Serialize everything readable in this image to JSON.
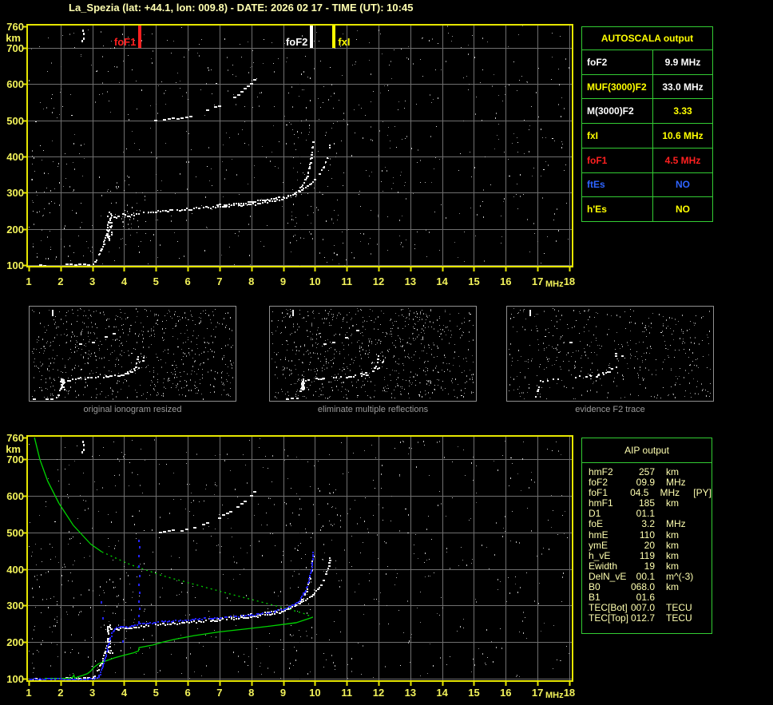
{
  "header": {
    "title": "La_Spezia (lat: +44.1, lon: 009.8) - DATE: 2026 02 17 - TIME (UT): 10:45"
  },
  "colors": {
    "background": "#000000",
    "title_text": "#ffffb0",
    "axis_text": "#f2f25a",
    "plot_border": "#e6e600",
    "grid": "#6f6f6f",
    "table_border": "#33cc33",
    "white": "#ffffff",
    "yellow": "#ffff00",
    "red": "#ff2020",
    "blue": "#2e64ff",
    "trace_white": "#f2f2f2",
    "profile_green": "#00d200",
    "restored_blue": "#2424ff",
    "caption_gray": "#9c9c9c",
    "aip_text": "#ffffb0"
  },
  "autoscala_table": {
    "title": "AUTOSCALA output",
    "rows": [
      {
        "label": "foF2",
        "value": "9.9 MHz",
        "label_color": "#ffffff",
        "value_color": "#ffffff"
      },
      {
        "label": "MUF(3000)F2",
        "value": "33.0 MHz",
        "label_color": "#ffff00",
        "value_color": "#ffffff"
      },
      {
        "label": "M(3000)F2",
        "value": "3.33",
        "label_color": "#ffffff",
        "value_color": "#ffff00"
      },
      {
        "label": "fxI",
        "value": "10.6 MHz",
        "label_color": "#ffff00",
        "value_color": "#ffff00"
      },
      {
        "label": "foF1",
        "value": "4.5 MHz",
        "label_color": "#ff2020",
        "value_color": "#ff2020"
      },
      {
        "label": "ftEs",
        "value": "NO",
        "label_color": "#2e64ff",
        "value_color": "#2e64ff"
      },
      {
        "label": "h'Es",
        "value": "NO",
        "label_color": "#ffff00",
        "value_color": "#ffff00"
      }
    ]
  },
  "aip_table": {
    "title": "AIP output",
    "rows": [
      {
        "name": "hmF2",
        "value": "257",
        "unit": "km",
        "extra": ""
      },
      {
        "name": "foF2",
        "value": "09.9",
        "unit": "MHz",
        "extra": ""
      },
      {
        "name": "foF1",
        "value": "04.5",
        "unit": "MHz",
        "extra": "[PY]"
      },
      {
        "name": "hmF1",
        "value": "185",
        "unit": "km",
        "extra": ""
      },
      {
        "name": "D1",
        "value": "01.1",
        "unit": "",
        "extra": ""
      },
      {
        "name": "foE",
        "value": "3.2",
        "unit": "MHz",
        "extra": ""
      },
      {
        "name": "hmE",
        "value": "110",
        "unit": "km",
        "extra": ""
      },
      {
        "name": "ymE",
        "value": "20",
        "unit": "km",
        "extra": ""
      },
      {
        "name": "h_vE",
        "value": "119",
        "unit": "km",
        "extra": ""
      },
      {
        "name": "Ewidth",
        "value": "19",
        "unit": "km",
        "extra": ""
      },
      {
        "name": "DelN_vE",
        "value": "00.1",
        "unit": "m^(-3)",
        "extra": ""
      },
      {
        "name": "B0",
        "value": "068.0",
        "unit": "km",
        "extra": ""
      },
      {
        "name": "B1",
        "value": "01.6",
        "unit": "",
        "extra": ""
      },
      {
        "name": "TEC[Bot]",
        "value": "007.0",
        "unit": "TECU",
        "extra": ""
      },
      {
        "name": "TEC[Top]",
        "value": "012.7",
        "unit": "TECU",
        "extra": ""
      }
    ]
  },
  "thumbnails": [
    {
      "caption": "original ionogram resized",
      "noise": {
        "seed": 101,
        "uniform": 680,
        "white": 12,
        "clusters": []
      },
      "series": [
        "es-left",
        "es-main",
        "f-rise",
        "f1-spread",
        "f-trace",
        "x-trace",
        "second-hop",
        "artifact"
      ],
      "skip_boost": 0.2
    },
    {
      "caption": "eliminate multiple reflections",
      "noise": {
        "seed": 202,
        "uniform": 760,
        "white": 14,
        "clusters": []
      },
      "series": [
        "es-left",
        "es-main",
        "f-rise",
        "f1-spread",
        "f-trace",
        "x-trace",
        "second-hop",
        "artifact"
      ],
      "skip_boost": 0.25
    },
    {
      "caption": "evidence F2 trace",
      "noise": {
        "seed": 303,
        "uniform": 430,
        "white": 10,
        "clusters": []
      },
      "series": [
        "es-main",
        "f-rise",
        "f-trace",
        "x-trace",
        "second-hop",
        "artifact"
      ],
      "skip_boost": 0.45
    }
  ],
  "chart_data": [
    {
      "type": "scatter",
      "title": "ionogram with AUTOSCALA markers",
      "xlabel": "MHz",
      "ylabel": "km",
      "xlim": [
        1,
        18
      ],
      "ylim": [
        100,
        760
      ],
      "xticks": [
        1,
        2,
        3,
        4,
        5,
        6,
        7,
        8,
        9,
        10,
        11,
        12,
        13,
        14,
        15,
        16,
        17,
        18
      ],
      "yticks": [
        760,
        700,
        600,
        500,
        400,
        300,
        200,
        100
      ],
      "x_unit": "MHz",
      "y_unit": "km",
      "grid": true,
      "markers": [
        {
          "label": "foF1",
          "f": 4.5,
          "color": "#ff2020",
          "side": "left"
        },
        {
          "label": "foF2",
          "f": 9.9,
          "color": "#ffffff",
          "side": "left"
        },
        {
          "label": "fxI",
          "f": 10.6,
          "color": "#ffff00",
          "side": "right"
        }
      ],
      "noise": {
        "seed": 42,
        "uniform": 620,
        "white": 40,
        "clusters": [
          {
            "f": [
              9.2,
              10.9
            ],
            "km": [
              130,
              640
            ],
            "n": 70
          },
          {
            "f": [
              3.4,
              4.7
            ],
            "km": [
              150,
              360
            ],
            "n": 40
          },
          {
            "f": [
              1.05,
              2.7
            ],
            "km": [
              100,
              430
            ],
            "n": 45
          }
        ]
      },
      "series": [
        {
          "name": "es-left",
          "style": "dashes",
          "color": "#f2f2f2",
          "points": [
            [
              1.05,
              100
            ],
            [
              1.5,
              101
            ]
          ]
        },
        {
          "name": "es-main",
          "style": "dashes",
          "color": "#f2f2f2",
          "points": [
            [
              2.15,
              103
            ],
            [
              3.02,
              104
            ]
          ]
        },
        {
          "name": "f-rise",
          "style": "trace",
          "color": "#f2f2f2",
          "points": [
            [
              3.02,
              106
            ],
            [
              3.15,
              124
            ],
            [
              3.3,
              152
            ],
            [
              3.42,
              188
            ],
            [
              3.5,
              225
            ]
          ]
        },
        {
          "name": "f1-spread",
          "style": "vspread",
          "color": "#f2f2f2",
          "points": [
            [
              3.48,
              170
            ],
            [
              3.56,
              250
            ]
          ],
          "n": 26
        },
        {
          "name": "f-trace",
          "style": "trace",
          "color": "#f2f2f2",
          "points": [
            [
              3.58,
              237
            ],
            [
              3.75,
              234
            ],
            [
              3.95,
              242
            ],
            [
              4.15,
              237
            ],
            [
              4.4,
              245
            ],
            [
              4.8,
              249
            ],
            [
              5.3,
              252
            ],
            [
              5.9,
              256
            ],
            [
              6.5,
              260
            ],
            [
              7.1,
              264
            ],
            [
              7.7,
              268
            ],
            [
              8.2,
              272
            ],
            [
              8.7,
              279
            ],
            [
              9.1,
              289
            ],
            [
              9.35,
              301
            ],
            [
              9.55,
              317
            ],
            [
              9.7,
              340
            ],
            [
              9.8,
              367
            ],
            [
              9.86,
              398
            ],
            [
              9.9,
              425
            ],
            [
              9.92,
              448
            ]
          ]
        },
        {
          "name": "x-trace",
          "style": "trace",
          "color": "#f2f2f2",
          "skip": 0.25,
          "points": [
            [
              6.9,
              267
            ],
            [
              7.5,
              272
            ],
            [
              8.1,
              277
            ],
            [
              8.6,
              284
            ],
            [
              9.0,
              292
            ],
            [
              9.4,
              303
            ],
            [
              9.7,
              317
            ],
            [
              9.95,
              334
            ],
            [
              10.15,
              355
            ],
            [
              10.3,
              380
            ],
            [
              10.4,
              408
            ],
            [
              10.45,
              435
            ]
          ]
        },
        {
          "name": "second-hop",
          "style": "dashes",
          "color": "#f2f2f2",
          "points": [
            [
              4.95,
              502
            ],
            [
              5.4,
              506
            ],
            [
              5.9,
              511
            ],
            [
              6.3,
              519
            ],
            [
              6.8,
              536
            ],
            [
              7.25,
              556
            ],
            [
              7.65,
              580
            ],
            [
              7.95,
              603
            ],
            [
              8.15,
              622
            ]
          ]
        },
        {
          "name": "artifact",
          "style": "points",
          "color": "#f2f2f2",
          "points": [
            [
              2.68,
              752
            ],
            [
              2.7,
              742
            ],
            [
              2.72,
              730
            ],
            [
              2.66,
              722
            ]
          ]
        }
      ]
    },
    {
      "type": "scatter",
      "title": "ionogram with restored trace and electron density profile",
      "xlabel": "MHz",
      "ylabel": "km",
      "xlim": [
        1,
        18
      ],
      "ylim": [
        100,
        760
      ],
      "xticks": [
        1,
        2,
        3,
        4,
        5,
        6,
        7,
        8,
        9,
        10,
        11,
        12,
        13,
        14,
        15,
        16,
        17,
        18
      ],
      "yticks": [
        760,
        700,
        600,
        500,
        400,
        300,
        200,
        100
      ],
      "x_unit": "MHz",
      "y_unit": "km",
      "grid": true,
      "includes_series_of_chart": 0,
      "noise": {
        "seed": 77,
        "uniform": 620,
        "white": 35,
        "clusters": [
          {
            "f": [
              9.2,
              10.9
            ],
            "km": [
              130,
              640
            ],
            "n": 55
          },
          {
            "f": [
              3.3,
              4.7
            ],
            "km": [
              150,
              420
            ],
            "n": 35
          },
          {
            "f": [
              1.05,
              2.7
            ],
            "km": [
              100,
              430
            ],
            "n": 40
          }
        ]
      },
      "series": [
        {
          "name": "profile-top",
          "style": "line",
          "color": "#00d200",
          "points": [
            [
              1.18,
              760
            ],
            [
              1.35,
              700
            ],
            [
              1.6,
              640
            ],
            [
              1.95,
              580
            ],
            [
              2.4,
              520
            ],
            [
              2.95,
              468
            ],
            [
              3.3,
              447
            ]
          ]
        },
        {
          "name": "profile-mid",
          "style": "dotted",
          "color": "#00d200",
          "points": [
            [
              3.3,
              447
            ],
            [
              4.2,
              412
            ],
            [
              5.2,
              382
            ],
            [
              6.3,
              356
            ],
            [
              7.4,
              330
            ],
            [
              8.4,
              308
            ],
            [
              9.2,
              290
            ],
            [
              9.7,
              277
            ],
            [
              9.93,
              268
            ]
          ]
        },
        {
          "name": "profile-bottom",
          "style": "line",
          "color": "#00d200",
          "points": [
            [
              9.93,
              268
            ],
            [
              9.4,
              253
            ],
            [
              8.6,
              244
            ],
            [
              7.8,
              236
            ],
            [
              7.0,
              228
            ],
            [
              6.2,
              218
            ],
            [
              5.6,
              208
            ],
            [
              5.2,
              200
            ],
            [
              4.9,
              192
            ],
            [
              4.6,
              187
            ],
            [
              4.47,
              185
            ],
            [
              4.45,
              176
            ],
            [
              4.3,
              171
            ],
            [
              4.0,
              164
            ],
            [
              3.7,
              157
            ],
            [
              3.4,
              148
            ],
            [
              3.2,
              141
            ],
            [
              3.05,
              131
            ],
            [
              2.95,
              121
            ],
            [
              2.85,
              114
            ],
            [
              2.7,
              109
            ],
            [
              2.55,
              105
            ],
            [
              2.45,
              101
            ],
            [
              2.42,
              110
            ],
            [
              2.38,
              104
            ],
            [
              2.3,
              101
            ],
            [
              2.1,
              101
            ],
            [
              1.8,
              101
            ],
            [
              1.5,
              101
            ]
          ]
        },
        {
          "name": "restored-low",
          "style": "dots",
          "color": "#2424ff",
          "points": [
            [
              1.02,
              100
            ],
            [
              1.6,
              100
            ],
            [
              2.2,
              100
            ],
            [
              2.6,
              100
            ],
            [
              2.85,
              101
            ],
            [
              3.05,
              103
            ],
            [
              3.2,
              110
            ]
          ]
        },
        {
          "name": "restored-trace",
          "style": "dots",
          "color": "#2424ff",
          "points": [
            [
              3.2,
              110
            ],
            [
              3.3,
              135
            ],
            [
              3.4,
              165
            ],
            [
              3.5,
              200
            ],
            [
              3.6,
              228
            ],
            [
              3.72,
              240
            ],
            [
              3.9,
              246
            ],
            [
              4.1,
              242
            ],
            [
              4.35,
              250
            ],
            [
              4.7,
              254
            ],
            [
              5.1,
              257
            ],
            [
              5.7,
              261
            ],
            [
              6.3,
              265
            ],
            [
              6.9,
              268
            ],
            [
              7.5,
              272
            ],
            [
              8.1,
              277
            ],
            [
              8.6,
              283
            ],
            [
              9.0,
              292
            ],
            [
              9.3,
              303
            ],
            [
              9.5,
              317
            ],
            [
              9.65,
              337
            ],
            [
              9.77,
              362
            ],
            [
              9.85,
              392
            ],
            [
              9.9,
              420
            ],
            [
              9.93,
              448
            ]
          ]
        },
        {
          "name": "f1-spike",
          "style": "points",
          "color": "#2424ff",
          "points": [
            [
              4.45,
              258
            ],
            [
              4.44,
              275
            ],
            [
              4.46,
              295
            ],
            [
              4.43,
              315
            ],
            [
              4.46,
              338
            ],
            [
              4.44,
              360
            ],
            [
              4.46,
              385
            ],
            [
              4.43,
              410
            ],
            [
              4.45,
              438
            ],
            [
              4.46,
              462
            ],
            [
              4.44,
              480
            ]
          ]
        },
        {
          "name": "stray-blue",
          "style": "points",
          "color": "#2424ff",
          "points": [
            [
              3.25,
              312
            ],
            [
              3.3,
              268
            ],
            [
              3.95,
              205
            ]
          ]
        }
      ]
    }
  ]
}
